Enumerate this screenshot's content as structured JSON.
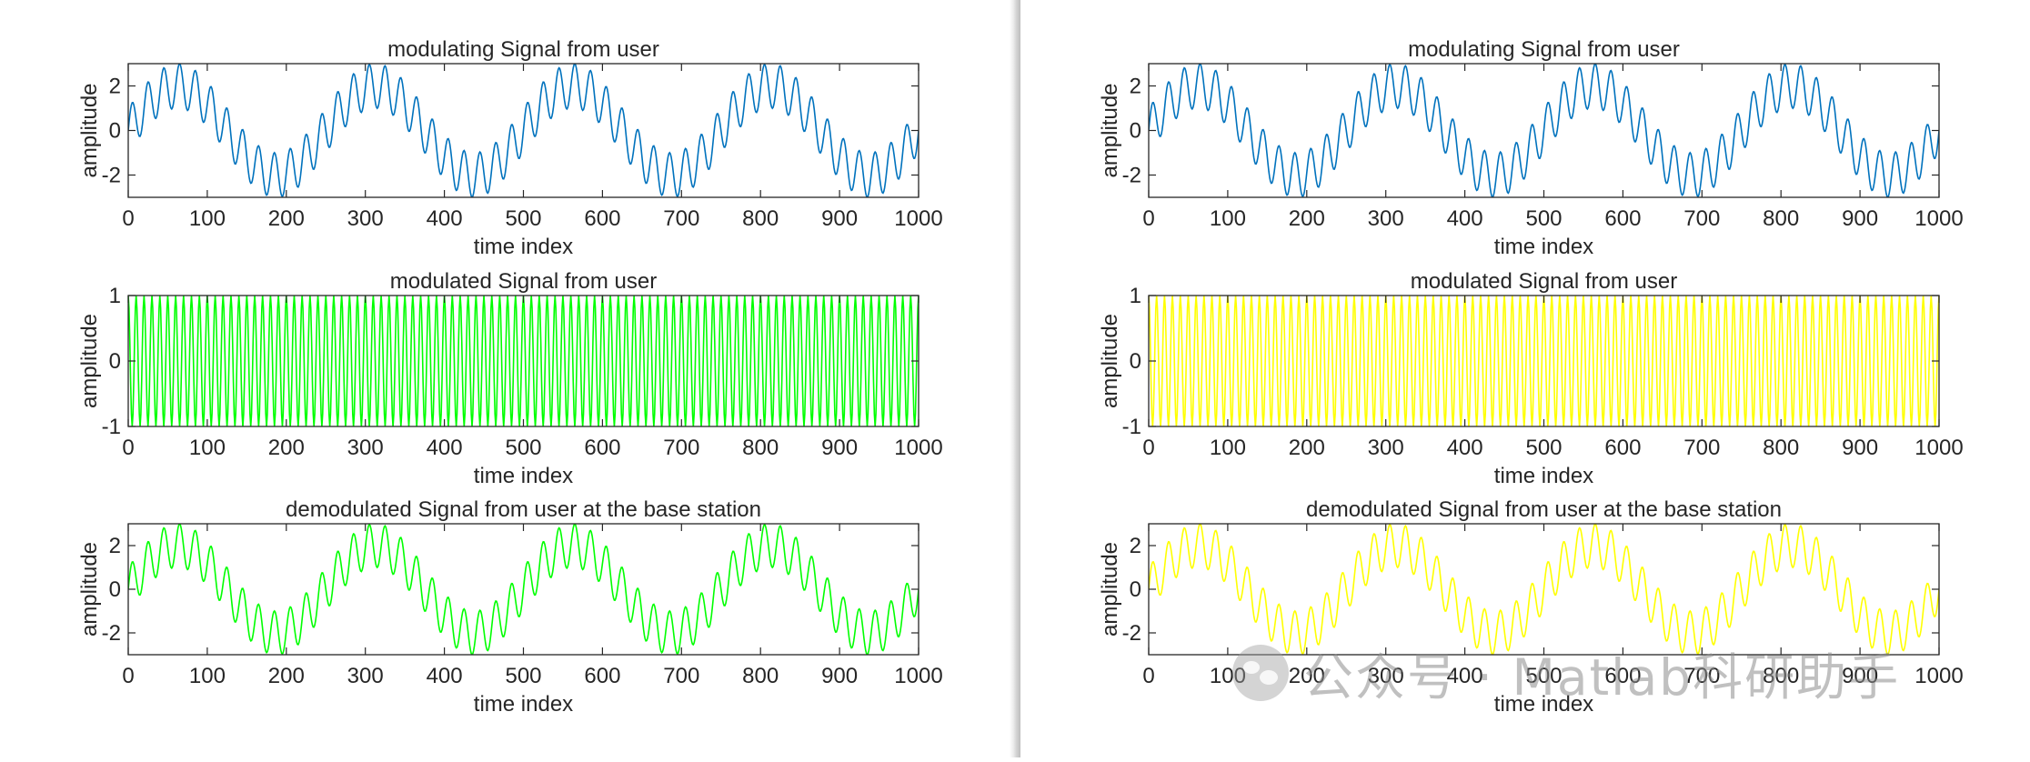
{
  "colors": {
    "blue": "#0072BD",
    "green": "#00FF00",
    "yellow": "#FFFF00",
    "axis": "#262626"
  },
  "watermark": {
    "logo": "wechat-logo-icon",
    "text": "公众号 · Matlab科研助手"
  },
  "chart_data": [
    {
      "panel": "left",
      "type": "line",
      "title": "modulating Signal from user",
      "xlabel": "time index",
      "ylabel": "amplitude",
      "xlim": [
        0,
        1000
      ],
      "ylim": [
        -3,
        3
      ],
      "xticks": [
        0,
        100,
        200,
        300,
        400,
        500,
        600,
        700,
        800,
        900,
        1000
      ],
      "yticks": [
        -2,
        0,
        2
      ],
      "grid": false,
      "color": "#0072BD",
      "signal": "2*sin(2*pi*n/250) + sin(2*pi*n/20)",
      "series": [
        {
          "x_start": 0,
          "x_end": 1000
        }
      ]
    },
    {
      "panel": "left",
      "type": "line",
      "title": "modulated Signal from user",
      "xlabel": "time index",
      "ylabel": "amplitude",
      "xlim": [
        0,
        1000
      ],
      "ylim": [
        -1,
        1
      ],
      "xticks": [
        0,
        100,
        200,
        300,
        400,
        500,
        600,
        700,
        800,
        900,
        1000
      ],
      "yticks": [
        -1,
        0,
        1
      ],
      "grid": false,
      "color": "#00FF00",
      "signal": "cos(2*pi*n/10)",
      "series": [
        {
          "x_start": 0,
          "x_end": 1000
        }
      ]
    },
    {
      "panel": "left",
      "type": "line",
      "title": "demodulated Signal from user at the base station",
      "xlabel": "time index",
      "ylabel": "amplitude",
      "xlim": [
        0,
        1000
      ],
      "ylim": [
        -3,
        3
      ],
      "xticks": [
        0,
        100,
        200,
        300,
        400,
        500,
        600,
        700,
        800,
        900,
        1000
      ],
      "yticks": [
        -2,
        0,
        2
      ],
      "grid": false,
      "color": "#00FF00",
      "signal": "2*sin(2*pi*n/250) + sin(2*pi*n/20)",
      "series": [
        {
          "x_start": 0,
          "x_end": 1000
        }
      ]
    },
    {
      "panel": "right",
      "type": "line",
      "title": "modulating Signal from user",
      "xlabel": "time index",
      "ylabel": "amplitude",
      "xlim": [
        0,
        1000
      ],
      "ylim": [
        -3,
        3
      ],
      "xticks": [
        0,
        100,
        200,
        300,
        400,
        500,
        600,
        700,
        800,
        900,
        1000
      ],
      "yticks": [
        -2,
        0,
        2
      ],
      "grid": false,
      "color": "#0072BD",
      "signal": "2*sin(2*pi*n/250) + sin(2*pi*n/20)",
      "series": [
        {
          "x_start": 0,
          "x_end": 1000
        }
      ]
    },
    {
      "panel": "right",
      "type": "line",
      "title": "modulated Signal from user",
      "xlabel": "time index",
      "ylabel": "amplitude",
      "xlim": [
        0,
        1000
      ],
      "ylim": [
        -1,
        1
      ],
      "xticks": [
        0,
        100,
        200,
        300,
        400,
        500,
        600,
        700,
        800,
        900,
        1000
      ],
      "yticks": [
        -1,
        0,
        1
      ],
      "grid": false,
      "color": "#FFFF00",
      "signal": "cos(2*pi*n/10)",
      "series": [
        {
          "x_start": 0,
          "x_end": 1000
        }
      ]
    },
    {
      "panel": "right",
      "type": "line",
      "title": "demodulated Signal from user at the base station",
      "xlabel": "time index",
      "ylabel": "amplitude",
      "xlim": [
        0,
        1000
      ],
      "ylim": [
        -3,
        3
      ],
      "xticks": [
        0,
        100,
        200,
        300,
        400,
        500,
        600,
        700,
        800,
        900,
        1000
      ],
      "yticks": [
        -2,
        0,
        2
      ],
      "grid": false,
      "color": "#FFFF00",
      "signal": "2*sin(2*pi*n/250) + sin(2*pi*n/20)",
      "series": [
        {
          "x_start": 0,
          "x_end": 1000
        }
      ]
    }
  ]
}
